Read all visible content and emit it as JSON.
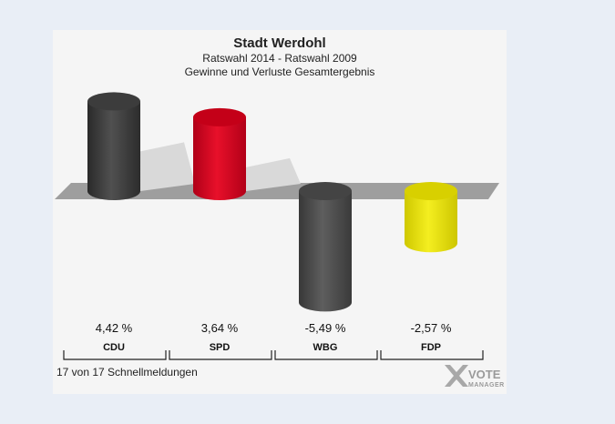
{
  "chart_data": {
    "type": "bar",
    "title": "Stadt Werdohl",
    "subtitle": "Ratswahl 2014 - Ratswahl 2009",
    "subtitle2": "Gewinne und Verluste Gesamtergebnis",
    "categories": [
      "CDU",
      "SPD",
      "WBG",
      "FDP"
    ],
    "values": [
      4.42,
      3.64,
      -5.49,
      -2.57
    ],
    "value_labels": [
      "4,42 %",
      "3,64 %",
      "-5,49 %",
      "-2,57 %"
    ],
    "colors": [
      "#3a3a3a",
      "#d0021b",
      "#4a4a4a",
      "#e8e000"
    ],
    "unit": "%"
  },
  "footer": {
    "note": "17 von 17 Schnellmeldungen",
    "logo_main": "VOTE",
    "logo_sub": "MANAGER"
  }
}
